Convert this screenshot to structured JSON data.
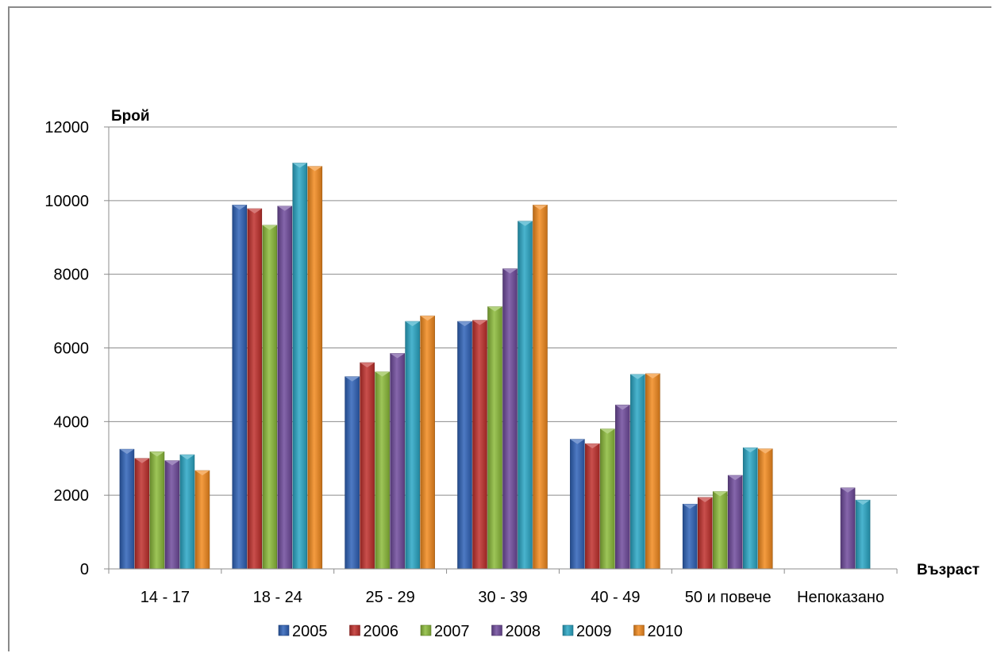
{
  "chart_data": {
    "type": "bar",
    "ylabel": "Брой",
    "xlabel": "Възраст",
    "ylim": [
      0,
      12000
    ],
    "yticks": [
      "0",
      "2000",
      "4000",
      "6000",
      "8000",
      "10000",
      "12000"
    ],
    "grid": true,
    "legend_position": "bottom",
    "categories": [
      "14 - 17",
      "18 - 24",
      "25 - 29",
      "30 - 39",
      "40 - 49",
      "50 и повече",
      "Непоказано"
    ],
    "series": [
      {
        "name": "2005",
        "color": "#2f62b8",
        "values": [
          3250,
          9880,
          5220,
          6720,
          3520,
          1760,
          null
        ]
      },
      {
        "name": "2006",
        "color": "#c0302c",
        "values": [
          3000,
          9780,
          5600,
          6750,
          3400,
          1940,
          null
        ]
      },
      {
        "name": "2007",
        "color": "#8cbb3a",
        "values": [
          3180,
          9330,
          5350,
          7120,
          3800,
          2100,
          null
        ]
      },
      {
        "name": "2008",
        "color": "#6f4b9c",
        "values": [
          2940,
          9850,
          5850,
          8150,
          4450,
          2540,
          2200
        ]
      },
      {
        "name": "2009",
        "color": "#2aa7c5",
        "values": [
          3100,
          11020,
          6720,
          9440,
          5280,
          3290,
          1870
        ]
      },
      {
        "name": "2010",
        "color": "#f28a1e",
        "values": [
          2670,
          10930,
          6870,
          9880,
          5300,
          3260,
          null
        ]
      }
    ]
  }
}
